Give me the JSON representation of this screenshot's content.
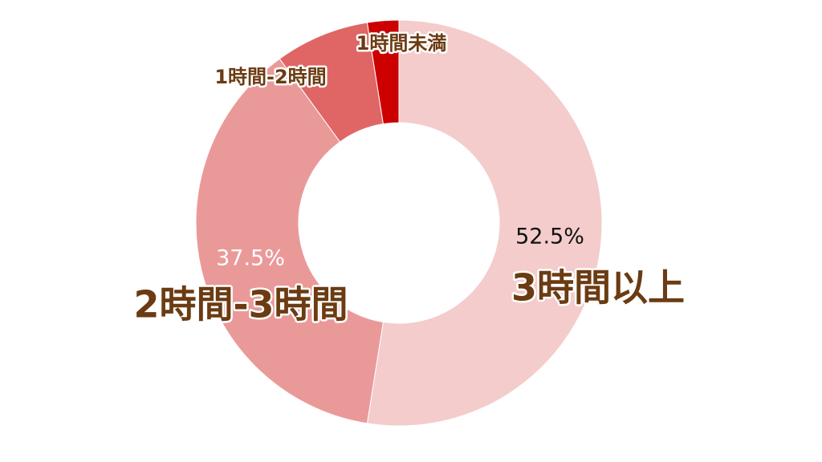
{
  "chart_data": {
    "type": "donut",
    "categories": [
      "3時間以上",
      "2時間-3時間",
      "1時間-2時間",
      "1時間未満"
    ],
    "values": [
      52.5,
      37.5,
      7.5,
      2.5
    ],
    "value_labels": [
      "52.5%",
      "37.5%",
      null,
      null
    ],
    "colors": [
      "#f4cccc",
      "#ea9999",
      "#e06666",
      "#cc0000"
    ]
  }
}
